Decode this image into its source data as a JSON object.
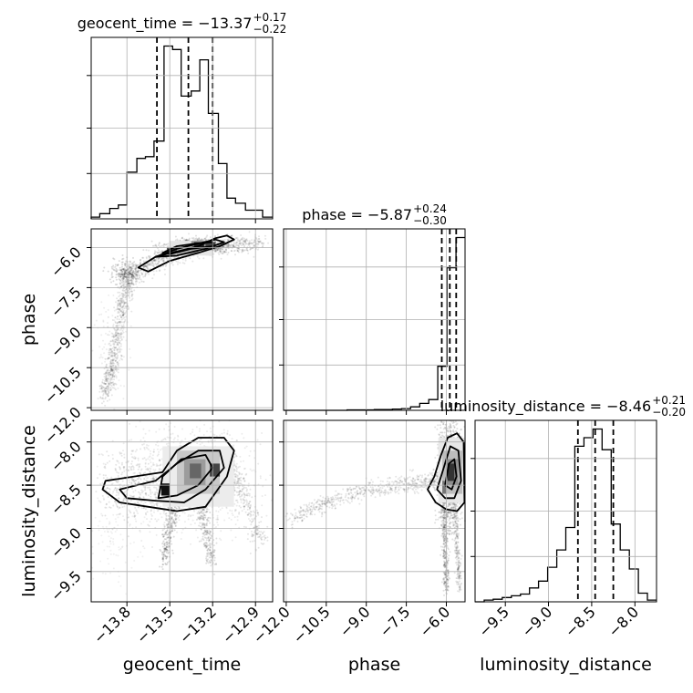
{
  "chart_data": {
    "type": "corner",
    "parameters": [
      "geocent_time",
      "phase",
      "luminosity_distance"
    ],
    "titles": [
      {
        "param": "geocent_time",
        "prefix": "geocent_time = ",
        "median": "−13.37",
        "plus": "+0.17",
        "minus": "−0.22"
      },
      {
        "param": "phase",
        "prefix": "phase = ",
        "median": "−5.87",
        "plus": "+0.24",
        "minus": "−0.30"
      },
      {
        "param": "luminosity_distance",
        "prefix": "luminosity_distance = ",
        "median": "−8.46",
        "plus": "+0.21",
        "minus": "−0.20"
      }
    ],
    "ranges": {
      "geocent_time": [
        -14.05,
        -12.78
      ],
      "phase": [
        -12.1,
        -5.3
      ],
      "luminosity_distance": [
        -9.85,
        -7.75
      ]
    },
    "ticks": {
      "geocent_time": {
        "values": [
          -13.8,
          -13.5,
          -13.2,
          -12.9
        ],
        "labels": [
          "−13.8",
          "−13.5",
          "−13.2",
          "−12.9"
        ]
      },
      "phase": {
        "values": [
          -12.0,
          -10.5,
          -9.0,
          -7.5,
          -6.0
        ],
        "labels": [
          "−12.0",
          "−10.5",
          "−9.0",
          "−7.5",
          "−6.0"
        ]
      },
      "luminosity_distance": {
        "values": [
          -9.5,
          -9.0,
          -8.5,
          -8.0
        ],
        "labels": [
          "−9.5",
          "−9.0",
          "−8.5",
          "−8.0"
        ]
      }
    },
    "quantiles": {
      "geocent_time": [
        -13.59,
        -13.37,
        -13.2
      ],
      "phase": [
        -6.17,
        -5.87,
        -5.63
      ],
      "luminosity_distance": [
        -8.66,
        -8.46,
        -8.25
      ]
    },
    "histograms": {
      "geocent_time": {
        "edges": [
          -14.05,
          -13.99,
          -13.92,
          -13.86,
          -13.8,
          -13.73,
          -13.67,
          -13.61,
          -13.54,
          -13.48,
          -13.42,
          -13.35,
          -13.29,
          -13.23,
          -13.16,
          -13.1,
          -13.04,
          -12.97,
          -12.91,
          -12.85,
          -12.78
        ],
        "counts": [
          0.1,
          0.3,
          0.6,
          0.8,
          2.7,
          3.5,
          3.6,
          4.5,
          10.0,
          9.8,
          7.1,
          7.4,
          9.2,
          6.1,
          3.2,
          1.2,
          0.9,
          0.5,
          0.5,
          0.1
        ]
      },
      "phase": {
        "edges": [
          -12.1,
          -11.76,
          -11.42,
          -11.08,
          -10.74,
          -10.4,
          -10.06,
          -9.72,
          -9.38,
          -9.04,
          -8.7,
          -8.36,
          -8.02,
          -7.68,
          -7.34,
          -7.0,
          -6.66,
          -6.32,
          -5.98,
          -5.64,
          -5.3
        ],
        "counts": [
          0,
          0,
          0,
          0,
          0,
          0,
          0,
          0.1,
          0.1,
          0.1,
          0.2,
          0.2,
          0.3,
          0.4,
          0.8,
          1.6,
          2.5,
          10.2,
          33.0,
          40.0
        ]
      },
      "luminosity_distance": {
        "edges": [
          -9.85,
          -9.745,
          -9.64,
          -9.535,
          -9.43,
          -9.325,
          -9.22,
          -9.115,
          -9.01,
          -8.905,
          -8.8,
          -8.695,
          -8.59,
          -8.485,
          -8.38,
          -8.275,
          -8.17,
          -8.065,
          -7.96,
          -7.855,
          -7.75
        ],
        "counts": [
          0,
          0.1,
          0.15,
          0.25,
          0.35,
          0.45,
          0.8,
          1.2,
          2.0,
          3.0,
          4.3,
          9.0,
          9.5,
          10.0,
          8.8,
          4.5,
          3.0,
          1.9,
          0.5,
          0.1
        ]
      }
    },
    "posterior_2d": {
      "phase_vs_geocent_time": {
        "x": "geocent_time",
        "y": "phase",
        "mode": [
          -13.28,
          -5.9
        ],
        "secondary_mode": [
          -13.48,
          -6.1
        ],
        "contour_levels": 3
      },
      "luminosity_distance_vs_geocent_time": {
        "x": "geocent_time",
        "y": "luminosity_distance",
        "mode": [
          -13.33,
          -8.3
        ],
        "secondary_mode": [
          -13.53,
          -8.55
        ],
        "contour_levels": 3
      },
      "luminosity_distance_vs_phase": {
        "x": "phase",
        "y": "luminosity_distance",
        "mode": [
          -5.85,
          -8.32
        ],
        "secondary_mode": [
          -6.15,
          -8.5
        ],
        "contour_levels": 3
      }
    },
    "grid": true,
    "color": "#000000"
  }
}
